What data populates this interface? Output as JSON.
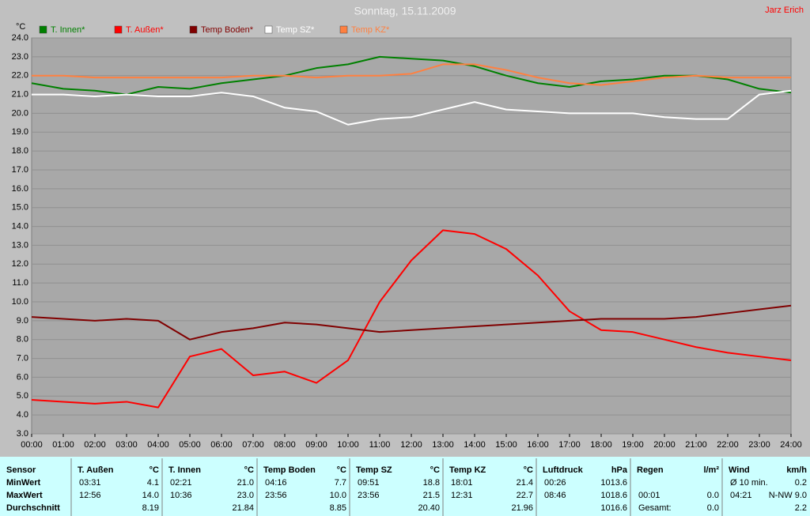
{
  "chart_data": {
    "type": "line",
    "title": "Sonntag, 15.11.2009",
    "author": "Jarz Erich",
    "y_label": "°C",
    "grid": true,
    "x": [
      0,
      1,
      2,
      3,
      4,
      5,
      6,
      7,
      8,
      9,
      10,
      11,
      12,
      13,
      14,
      15,
      16,
      17,
      18,
      19,
      20,
      21,
      22,
      23,
      24
    ],
    "xlim": [
      0,
      24
    ],
    "xticks": [
      {
        "value": 0,
        "label": "00:00"
      },
      {
        "value": 1,
        "label": "01:00"
      },
      {
        "value": 2,
        "label": "02:00"
      },
      {
        "value": 3,
        "label": "03:00"
      },
      {
        "value": 4,
        "label": "04:00"
      },
      {
        "value": 5,
        "label": "05:00"
      },
      {
        "value": 6,
        "label": "06:00"
      },
      {
        "value": 7,
        "label": "07:00"
      },
      {
        "value": 8,
        "label": "08:00"
      },
      {
        "value": 9,
        "label": "09:00"
      },
      {
        "value": 10,
        "label": "10:00"
      },
      {
        "value": 11,
        "label": "11:00"
      },
      {
        "value": 12,
        "label": "12:00"
      },
      {
        "value": 13,
        "label": "13:00"
      },
      {
        "value": 14,
        "label": "14:00"
      },
      {
        "value": 15,
        "label": "15:00"
      },
      {
        "value": 16,
        "label": "16:00"
      },
      {
        "value": 17,
        "label": "17:00"
      },
      {
        "value": 18,
        "label": "18:00"
      },
      {
        "value": 19,
        "label": "19:00"
      },
      {
        "value": 20,
        "label": "20:00"
      },
      {
        "value": 21,
        "label": "21:00"
      },
      {
        "value": 22,
        "label": "22:00"
      },
      {
        "value": 23,
        "label": "23:00"
      },
      {
        "value": 24,
        "label": "24:00"
      }
    ],
    "ylim": [
      3,
      24
    ],
    "yticks": [
      {
        "value": 3,
        "label": "3.0"
      },
      {
        "value": 4,
        "label": "4.0"
      },
      {
        "value": 5,
        "label": "5.0"
      },
      {
        "value": 6,
        "label": "6.0"
      },
      {
        "value": 7,
        "label": "7.0"
      },
      {
        "value": 8,
        "label": "8.0"
      },
      {
        "value": 9,
        "label": "9.0"
      },
      {
        "value": 10,
        "label": "10.0"
      },
      {
        "value": 11,
        "label": "11.0"
      },
      {
        "value": 12,
        "label": "12.0"
      },
      {
        "value": 13,
        "label": "13.0"
      },
      {
        "value": 14,
        "label": "14.0"
      },
      {
        "value": 15,
        "label": "15.0"
      },
      {
        "value": 16,
        "label": "16.0"
      },
      {
        "value": 17,
        "label": "17.0"
      },
      {
        "value": 18,
        "label": "18.0"
      },
      {
        "value": 19,
        "label": "19.0"
      },
      {
        "value": 20,
        "label": "20.0"
      },
      {
        "value": 21,
        "label": "21.0"
      },
      {
        "value": 22,
        "label": "22.0"
      },
      {
        "value": 23,
        "label": "23.0"
      },
      {
        "value": 24,
        "label": "24.0"
      }
    ],
    "series": [
      {
        "name": "T. Innen*",
        "color": "#008000",
        "values": [
          21.6,
          21.3,
          21.2,
          21.0,
          21.4,
          21.3,
          21.6,
          21.8,
          22.0,
          22.4,
          22.6,
          23.0,
          22.9,
          22.8,
          22.5,
          22.0,
          21.6,
          21.4,
          21.7,
          21.8,
          22.0,
          22.0,
          21.8,
          21.3,
          21.1
        ]
      },
      {
        "name": "T. Außen*",
        "color": "#ff0000",
        "values": [
          4.8,
          4.7,
          4.6,
          4.7,
          4.4,
          7.1,
          7.5,
          6.1,
          6.3,
          5.7,
          6.9,
          10.0,
          12.2,
          13.8,
          13.6,
          12.8,
          11.4,
          9.5,
          8.5,
          8.4,
          8.0,
          7.6,
          7.3,
          7.1,
          6.9
        ]
      },
      {
        "name": "Temp Boden*",
        "color": "#800000",
        "values": [
          9.2,
          9.1,
          9.0,
          9.1,
          9.0,
          8.0,
          8.4,
          8.6,
          8.9,
          8.8,
          8.6,
          8.4,
          8.5,
          8.6,
          8.7,
          8.8,
          8.9,
          9.0,
          9.1,
          9.1,
          9.1,
          9.2,
          9.4,
          9.6,
          9.8
        ]
      },
      {
        "name": "Temp SZ*",
        "color": "#ffffff",
        "values": [
          21.0,
          21.0,
          20.9,
          21.0,
          20.9,
          20.9,
          21.1,
          20.9,
          20.3,
          20.1,
          19.4,
          19.7,
          19.8,
          20.2,
          20.6,
          20.2,
          20.1,
          20.0,
          20.0,
          20.0,
          19.8,
          19.7,
          19.7,
          21.0,
          21.2
        ]
      },
      {
        "name": "Temp KZ*",
        "color": "#ff8040",
        "values": [
          22.0,
          22.0,
          21.9,
          21.9,
          21.9,
          21.9,
          21.9,
          22.0,
          22.0,
          21.9,
          22.0,
          22.0,
          22.1,
          22.6,
          22.6,
          22.3,
          21.9,
          21.6,
          21.5,
          21.7,
          21.9,
          22.0,
          21.9,
          21.9,
          21.9
        ]
      }
    ]
  },
  "table": {
    "columns": [
      {
        "name": "Sensor"
      },
      {
        "name": "T. Außen",
        "unit": "°C"
      },
      {
        "name": "T. Innen",
        "unit": "°C"
      },
      {
        "name": "Temp Boden",
        "unit": "°C"
      },
      {
        "name": "Temp SZ",
        "unit": "°C"
      },
      {
        "name": "Temp KZ",
        "unit": "°C"
      },
      {
        "name": "Luftdruck",
        "unit": "hPa"
      },
      {
        "name": "Regen",
        "unit": "l/m²"
      },
      {
        "name": "Wind",
        "unit": "km/h"
      }
    ],
    "rows": [
      {
        "label": "MinWert",
        "cells": [
          [
            "03:31",
            "4.1"
          ],
          [
            "02:21",
            "21.0"
          ],
          [
            "04:16",
            "7.7"
          ],
          [
            "09:51",
            "18.8"
          ],
          [
            "18:01",
            "21.4"
          ],
          [
            "00:26",
            "1013.6"
          ],
          [
            null,
            null
          ],
          [
            "Ø 10 min.",
            "0.2"
          ]
        ]
      },
      {
        "label": "MaxWert",
        "cells": [
          [
            "12:56",
            "14.0"
          ],
          [
            "10:36",
            "23.0"
          ],
          [
            "23:56",
            "10.0"
          ],
          [
            "23:56",
            "21.5"
          ],
          [
            "12:31",
            "22.7"
          ],
          [
            "08:46",
            "1018.6"
          ],
          [
            "00:01",
            "0.0"
          ],
          [
            "04:21",
            "N-NW 9.0"
          ]
        ]
      },
      {
        "label": "Durchschnitt",
        "cells": [
          [
            null,
            "8.19"
          ],
          [
            null,
            "21.84"
          ],
          [
            null,
            "8.85"
          ],
          [
            null,
            "20.40"
          ],
          [
            null,
            "21.96"
          ],
          [
            null,
            "1016.6"
          ],
          [
            "Gesamt:",
            "0.0"
          ],
          [
            null,
            "2.2"
          ]
        ]
      }
    ]
  }
}
